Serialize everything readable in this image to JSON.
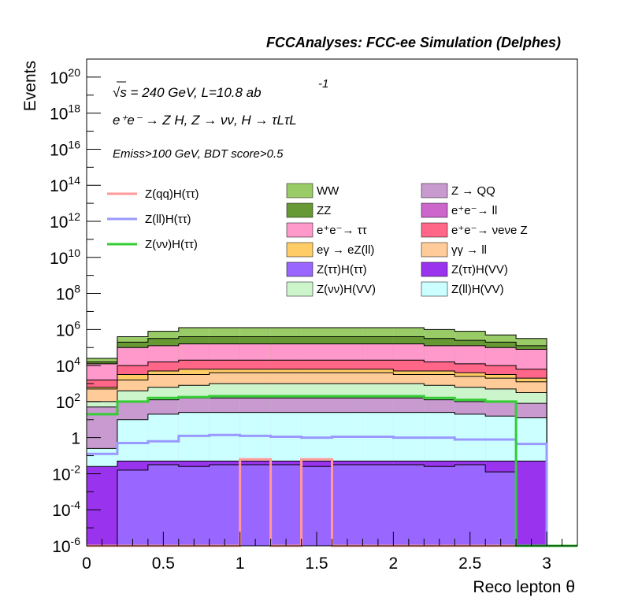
{
  "chart_data": {
    "type": "area",
    "title": "FCCAnalyses: FCC-ee Simulation (Delphes)",
    "annotations": {
      "energy": "√s = 240 GeV, L=10.8 ab",
      "energy_sup": "-1",
      "process": "e⁺e⁻ → Z H, Z → νν, H → τLτL",
      "selection": "Emiss>100 GeV, BDT score>0.5"
    },
    "xlabel": "Reco lepton θ",
    "ylabel": "Events",
    "xlim": [
      0,
      3.2
    ],
    "ylim_log10": [
      -6,
      21
    ],
    "yscale": "log",
    "xticks": [
      "0",
      "0.5",
      "1",
      "1.5",
      "2",
      "2.5",
      "3"
    ],
    "yticks": [
      {
        "base": "10",
        "exp": "20",
        "v": 20
      },
      {
        "base": "10",
        "exp": "18",
        "v": 18
      },
      {
        "base": "10",
        "exp": "16",
        "v": 16
      },
      {
        "base": "10",
        "exp": "14",
        "v": 14
      },
      {
        "base": "10",
        "exp": "12",
        "v": 12
      },
      {
        "base": "10",
        "exp": "10",
        "v": 10
      },
      {
        "base": "10",
        "exp": "8",
        "v": 8
      },
      {
        "base": "10",
        "exp": "6",
        "v": 6
      },
      {
        "base": "10",
        "exp": "4",
        "v": 4
      },
      {
        "base": "10",
        "exp": "2",
        "v": 2
      },
      {
        "base": "1",
        "exp": "",
        "v": 0
      },
      {
        "base": "10",
        "exp": "-2",
        "v": -2
      },
      {
        "base": "10",
        "exp": "-4",
        "v": -4
      },
      {
        "base": "10",
        "exp": "-6",
        "v": -6
      }
    ],
    "bin_edges": [
      0,
      0.2,
      0.4,
      0.6,
      0.8,
      1.0,
      1.2,
      1.4,
      1.6,
      1.8,
      2.0,
      2.2,
      2.4,
      2.6,
      2.8,
      3.0
    ],
    "stack_log10_tops": [
      {
        "name": "Z(ll)H(VV)",
        "color": "#ccffff",
        "values": [
          -0.6,
          1.0,
          1.3,
          1.4,
          1.4,
          1.4,
          1.4,
          1.4,
          1.4,
          1.4,
          1.4,
          1.4,
          1.3,
          1.2,
          1.1
        ]
      },
      {
        "name": "Z → QQ",
        "color": "#c89ad0",
        "values": [
          1.7,
          2.0,
          2.1,
          2.2,
          2.2,
          2.2,
          2.2,
          2.2,
          2.2,
          2.2,
          2.2,
          2.1,
          2.0,
          2.0,
          1.9
        ]
      },
      {
        "name": "Z(νν)H(VV)",
        "color": "#ccf5cc",
        "values": [
          2.0,
          2.6,
          2.8,
          2.9,
          3.0,
          3.0,
          3.0,
          3.0,
          3.0,
          3.0,
          3.0,
          2.9,
          2.8,
          2.7,
          2.5
        ]
      },
      {
        "name": "γγ → ll",
        "color": "#ffcc99",
        "values": [
          2.7,
          3.2,
          3.5,
          3.5,
          3.6,
          3.6,
          3.6,
          3.6,
          3.6,
          3.6,
          3.5,
          3.5,
          3.4,
          3.3,
          3.1
        ]
      },
      {
        "name": "eγ → eZ(ll)",
        "color": "#ffcc66",
        "values": [
          2.8,
          3.5,
          3.7,
          3.8,
          3.8,
          3.8,
          3.8,
          3.8,
          3.8,
          3.8,
          3.7,
          3.7,
          3.6,
          3.5,
          3.3
        ]
      },
      {
        "name": "e⁺e⁻ → νeνe Z",
        "color": "#ff6688",
        "values": [
          3.2,
          4.0,
          4.2,
          4.3,
          4.3,
          4.3,
          4.3,
          4.3,
          4.3,
          4.3,
          4.3,
          4.2,
          4.1,
          4.0,
          3.8
        ]
      },
      {
        "name": "e⁺e⁻ → ττ",
        "color": "#ff99cc",
        "values": [
          4.1,
          5.0,
          5.1,
          5.2,
          5.2,
          5.2,
          5.2,
          5.2,
          5.2,
          5.2,
          5.2,
          5.1,
          5.1,
          5.0,
          4.9
        ]
      },
      {
        "name": "ZZ",
        "color": "#669933",
        "values": [
          4.2,
          5.3,
          5.5,
          5.6,
          5.6,
          5.6,
          5.6,
          5.6,
          5.6,
          5.6,
          5.6,
          5.5,
          5.4,
          5.3,
          5.1
        ]
      },
      {
        "name": "WW",
        "color": "#99cc66",
        "values": [
          4.4,
          5.6,
          5.9,
          6.1,
          6.1,
          6.1,
          6.1,
          6.1,
          6.1,
          6.1,
          6.1,
          6.0,
          5.9,
          5.7,
          5.5
        ]
      }
    ],
    "floor_fills": [
      {
        "name": "Z(ττ)H(VV)",
        "color": "#9933ee",
        "values": [
          -1.6,
          -1.3,
          -1.3,
          -1.3,
          -1.3,
          -1.3,
          -1.3,
          -1.3,
          -1.3,
          -1.3,
          -1.3,
          -1.3,
          -1.3,
          -1.3,
          -1.3
        ]
      },
      {
        "name": "Z(ττ)H(ττ)",
        "color": "#9966ff",
        "values": [
          -6,
          -1.8,
          -1.5,
          -1.6,
          -1.5,
          -1.5,
          -1.5,
          -1.6,
          -1.5,
          -1.5,
          -1.5,
          -1.6,
          -1.5,
          -1.9,
          -6
        ]
      }
    ],
    "lines": [
      {
        "name": "Z(qq)H(ττ)",
        "color": "#ff9999",
        "values": [
          -6,
          -6,
          -6,
          -6,
          -6,
          -1.2,
          -6,
          -1.2,
          -6,
          -6,
          -6,
          -6,
          -6,
          -6,
          -6
        ]
      },
      {
        "name": "Z(ll)H(ττ)",
        "color": "#9999ff",
        "values": [
          -0.9,
          -0.3,
          -0.2,
          0.1,
          0.15,
          0.1,
          0.05,
          0.0,
          0.05,
          0.05,
          0.0,
          0.0,
          -0.1,
          -0.1,
          -0.35
        ]
      },
      {
        "name": "Z(νν)H(ττ)",
        "color": "#33cc33",
        "values": [
          1.3,
          2.0,
          2.2,
          2.25,
          2.3,
          2.3,
          2.3,
          2.3,
          2.3,
          2.3,
          2.3,
          2.2,
          2.1,
          2.0,
          -6
        ]
      }
    ],
    "legend": {
      "lines": [
        "Z(qq)H(ττ)",
        "Z(ll)H(ττ)",
        "Z(νν)H(ττ)"
      ],
      "boxes": [
        [
          "WW",
          "Z → QQ"
        ],
        [
          "ZZ",
          "e⁺e⁻→ ll"
        ],
        [
          "e⁺e⁻→ ττ",
          "e⁺e⁻→ νeνe Z"
        ],
        [
          "eγ → eZ(ll)",
          "γγ → ll"
        ],
        [
          "Z(ττ)H(ττ)",
          "Z(ττ)H(VV)"
        ],
        [
          "Z(νν)H(VV)",
          "Z(ll)H(VV)"
        ]
      ],
      "box_colors": [
        [
          "#99cc66",
          "#c89ad0"
        ],
        [
          "#669933",
          "#cc66cc"
        ],
        [
          "#ff99cc",
          "#ff6688"
        ],
        [
          "#ffcc66",
          "#ffcc99"
        ],
        [
          "#9966ff",
          "#9933ee"
        ],
        [
          "#ccf5cc",
          "#ccffff"
        ]
      ]
    }
  }
}
